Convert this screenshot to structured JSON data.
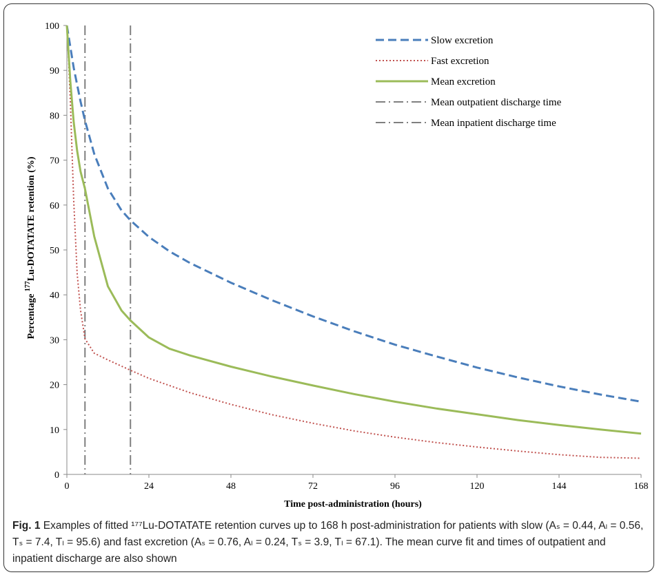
{
  "chart_data": {
    "type": "line",
    "xlabel": "Time post-administration (hours)",
    "ylabel_prefix": "Percentage ",
    "ylabel_sup": "177",
    "ylabel_suffix": "Lu-DOTATATE retention (%)",
    "xlim": [
      0,
      168
    ],
    "ylim": [
      0,
      100
    ],
    "xticks": [
      0,
      24,
      48,
      72,
      96,
      120,
      144,
      168
    ],
    "yticks": [
      0,
      10,
      20,
      30,
      40,
      50,
      60,
      70,
      80,
      90,
      100
    ],
    "grid": false,
    "legend_position": "top-right",
    "series": [
      {
        "name": "Slow excretion",
        "color": "#4a7ebb",
        "style": "dashed",
        "x": [
          0,
          2,
          4,
          5.3,
          8,
          12,
          16,
          18.6,
          24,
          30,
          36,
          48,
          60,
          72,
          84,
          96,
          108,
          120,
          132,
          144,
          156,
          168
        ],
        "y": [
          100,
          90.6,
          83.1,
          78.8,
          71.4,
          63.7,
          58.8,
          56.6,
          52.9,
          49.7,
          47.1,
          42.7,
          38.8,
          35.2,
          31.9,
          28.9,
          26.3,
          23.8,
          21.6,
          19.6,
          17.8,
          16.2
        ]
      },
      {
        "name": "Fast excretion",
        "color": "#c0504d",
        "style": "dotted",
        "x": [
          0,
          0.5,
          1,
          2,
          3,
          4,
          5.3,
          8,
          12,
          18.6,
          24,
          36,
          48,
          60,
          72,
          84,
          96,
          108,
          120,
          132,
          144,
          156,
          168
        ],
        "y": [
          100,
          92.3,
          83.3,
          61.1,
          44.8,
          36.6,
          30.2,
          27.0,
          25.5,
          23.2,
          21.4,
          18.2,
          15.6,
          13.3,
          11.4,
          9.7,
          8.3,
          7.1,
          6.1,
          5.2,
          4.4,
          3.8,
          3.6
        ]
      },
      {
        "name": "Mean excretion",
        "color": "#9bbb59",
        "style": "solid",
        "x": [
          0,
          1,
          2,
          3,
          4,
          5.3,
          8,
          12,
          16,
          18.6,
          24,
          30,
          36,
          48,
          60,
          72,
          84,
          96,
          108,
          120,
          132,
          144,
          156,
          168
        ],
        "y": [
          100,
          87.6,
          78.5,
          72.1,
          67.5,
          63.6,
          53.0,
          41.9,
          36.5,
          34.3,
          30.5,
          28.0,
          26.5,
          24.0,
          21.8,
          19.8,
          17.9,
          16.2,
          14.7,
          13.4,
          12.1,
          11.0,
          10.0,
          9.1
        ]
      }
    ],
    "vertical_lines": [
      {
        "name": "Mean outpatient discharge time",
        "x": 5.3,
        "color": "#7f7f7f",
        "style": "dash-dot"
      },
      {
        "name": "Mean inpatient discharge time",
        "x": 18.6,
        "color": "#7f7f7f",
        "style": "dash-dot"
      }
    ]
  },
  "legend": {
    "items": [
      {
        "label": "Slow excretion",
        "color": "#4a7ebb",
        "dash": "12,6",
        "width": 3
      },
      {
        "label": "Fast excretion",
        "color": "#c0504d",
        "dash": "2,3",
        "width": 2
      },
      {
        "label": "Mean excretion",
        "color": "#9bbb59",
        "dash": "",
        "width": 3
      },
      {
        "label": "Mean outpatient discharge time",
        "color": "#7f7f7f",
        "dash": "14,5,2,5",
        "width": 2
      },
      {
        "label": "Mean inpatient discharge time",
        "color": "#7f7f7f",
        "dash": "14,5,2,5",
        "width": 2
      }
    ]
  },
  "caption": {
    "fig_label": "Fig. 1",
    "text": " Examples of fitted ¹⁷⁷Lu-DOTATATE retention curves up to 168 h post-administration for patients with slow (Aₛ = 0.44, Aₗ = 0.56, Tₛ = 7.4, Tₗ = 95.6) and fast excretion (Aₛ = 0.76, Aₗ = 0.24, Tₛ = 3.9, Tₗ = 67.1). The mean curve fit and times of outpatient and inpatient discharge are also shown"
  }
}
